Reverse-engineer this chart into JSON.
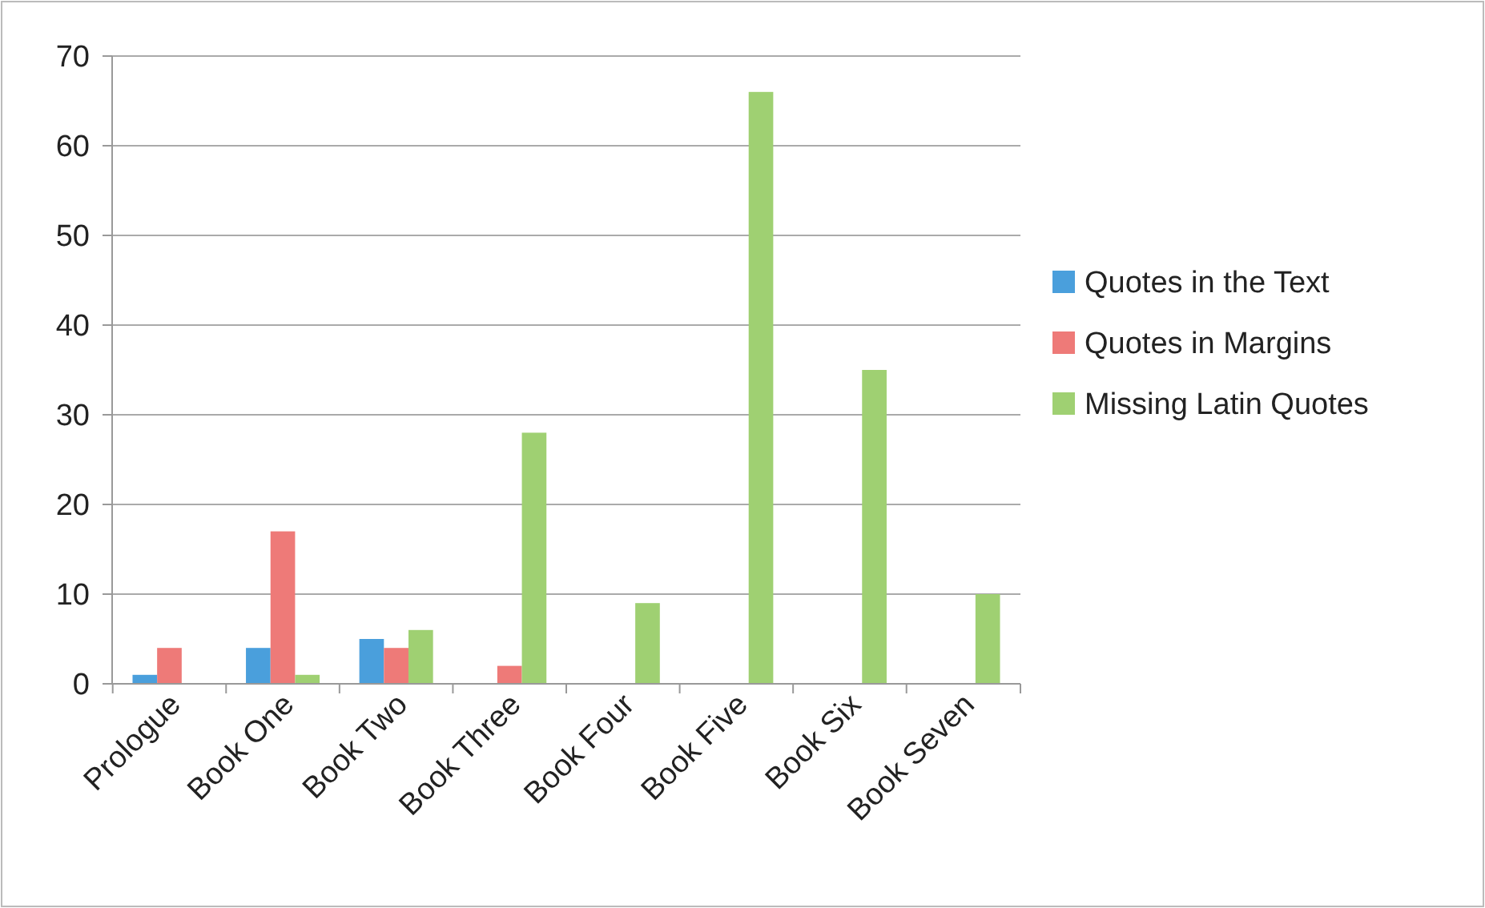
{
  "chart_data": {
    "type": "bar",
    "categories": [
      "Prologue",
      "Book One",
      "Book Two",
      "Book Three",
      "Book Four",
      "Book Five",
      "Book Six",
      "Book Seven"
    ],
    "series": [
      {
        "name": "Quotes in the Text",
        "color": "#4a9fdc",
        "values": [
          1,
          4,
          5,
          0,
          0,
          0,
          0,
          0
        ]
      },
      {
        "name": "Quotes in Margins",
        "color": "#ee7a78",
        "values": [
          4,
          17,
          4,
          2,
          0,
          0,
          0,
          0
        ]
      },
      {
        "name": "Missing Latin Quotes",
        "color": "#9fd072",
        "values": [
          0,
          1,
          6,
          28,
          9,
          66,
          35,
          10
        ]
      }
    ],
    "ylim": [
      0,
      70
    ],
    "yticks": [
      0,
      10,
      20,
      30,
      40,
      50,
      60,
      70
    ],
    "grid": "y",
    "legend": "right"
  }
}
